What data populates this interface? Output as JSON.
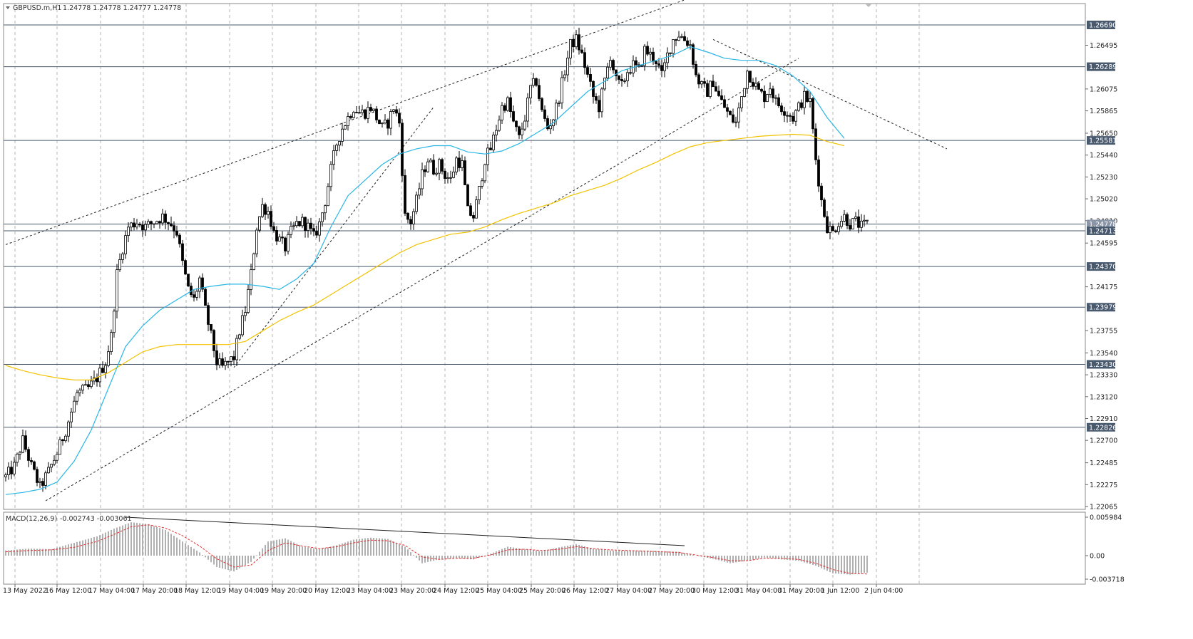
{
  "header": {
    "symbol": "GBPUSD.m,H1",
    "ohlc": "1.24778 1.24778 1.24777 1.24778"
  },
  "macd_header": {
    "label": "MACD(12,26,9)",
    "values": "-0.002743 -0.003061"
  },
  "colors": {
    "candle": "#000000",
    "ma_fast": "#29b6e6",
    "ma_slow": "#f2c200",
    "level": "#4a5a6e",
    "grid": "#b5b5b5",
    "macd_hist": "#b0b0b0",
    "macd_signal": "#e03030"
  },
  "chart_data": {
    "type": "candlestick",
    "symbol": "GBPUSD.m",
    "timeframe": "H1",
    "price_axis": {
      "range": [
        1.22065,
        1.2669
      ],
      "ticks": [
        "1.26495",
        "1.26075",
        "1.25865",
        "1.25650",
        "1.25440",
        "1.25230",
        "1.25020",
        "1.24810",
        "1.24595",
        "1.24175",
        "1.23755",
        "1.23540",
        "1.23330",
        "1.23120",
        "1.22910",
        "1.22700",
        "1.22485",
        "1.22275",
        "1.22065"
      ]
    },
    "time_axis": {
      "labels": [
        "13 May 2022",
        "16 May 12:00",
        "17 May 04:00",
        "17 May 20:00",
        "18 May 12:00",
        "19 May 04:00",
        "19 May 20:00",
        "20 May 12:00",
        "23 May 04:00",
        "23 May 20:00",
        "24 May 12:00",
        "25 May 04:00",
        "25 May 20:00",
        "26 May 12:00",
        "27 May 04:00",
        "27 May 20:00",
        "30 May 12:00",
        "31 May 04:00",
        "31 May 20:00",
        "1 Jun 12:00",
        "2 Jun 04:00"
      ]
    },
    "levels": [
      "1.26690",
      "1.26289",
      "1.25581",
      "1.24778",
      "1.24713",
      "1.24370",
      "1.23979",
      "1.23430",
      "1.22826"
    ],
    "current_price": "1.24778",
    "price_path": [
      [
        0,
        1.2235
      ],
      [
        3,
        1.2245
      ],
      [
        6,
        1.227
      ],
      [
        9,
        1.2245
      ],
      [
        12,
        1.2225
      ],
      [
        15,
        1.224
      ],
      [
        18,
        1.2258
      ],
      [
        21,
        1.228
      ],
      [
        25,
        1.2315
      ],
      [
        29,
        1.232
      ],
      [
        32,
        1.233
      ],
      [
        35,
        1.2345
      ],
      [
        37,
        1.237
      ],
      [
        39,
        1.243
      ],
      [
        41,
        1.2455
      ],
      [
        43,
        1.2475
      ],
      [
        46,
        1.248
      ],
      [
        49,
        1.2475
      ],
      [
        52,
        1.248
      ],
      [
        55,
        1.2485
      ],
      [
        58,
        1.2478
      ],
      [
        60,
        1.247
      ],
      [
        62,
        1.244
      ],
      [
        64,
        1.2415
      ],
      [
        66,
        1.2405
      ],
      [
        68,
        1.2425
      ],
      [
        70,
        1.2395
      ],
      [
        72,
        1.237
      ],
      [
        74,
        1.2345
      ],
      [
        76,
        1.234
      ],
      [
        78,
        1.2345
      ],
      [
        80,
        1.235
      ],
      [
        82,
        1.2375
      ],
      [
        84,
        1.2395
      ],
      [
        86,
        1.243
      ],
      [
        88,
        1.2475
      ],
      [
        90,
        1.2495
      ],
      [
        92,
        1.249
      ],
      [
        94,
        1.247
      ],
      [
        96,
        1.2462
      ],
      [
        98,
        1.2455
      ],
      [
        100,
        1.247
      ],
      [
        102,
        1.2478
      ],
      [
        104,
        1.248
      ],
      [
        106,
        1.2475
      ],
      [
        108,
        1.2465
      ],
      [
        110,
        1.2478
      ],
      [
        112,
        1.25
      ],
      [
        114,
        1.253
      ],
      [
        116,
        1.2555
      ],
      [
        118,
        1.257
      ],
      [
        120,
        1.258
      ],
      [
        122,
        1.259
      ],
      [
        124,
        1.2585
      ],
      [
        126,
        1.2585
      ],
      [
        128,
        1.259
      ],
      [
        130,
        1.258
      ],
      [
        132,
        1.257
      ],
      [
        134,
        1.2575
      ],
      [
        136,
        1.259
      ],
      [
        138,
        1.2575
      ],
      [
        140,
        1.2485
      ],
      [
        142,
        1.248
      ],
      [
        144,
        1.25
      ],
      [
        146,
        1.2525
      ],
      [
        148,
        1.254
      ],
      [
        150,
        1.253
      ],
      [
        152,
        1.2535
      ],
      [
        154,
        1.2525
      ],
      [
        156,
        1.252
      ],
      [
        158,
        1.254
      ],
      [
        160,
        1.2535
      ],
      [
        162,
        1.249
      ],
      [
        164,
        1.2485
      ],
      [
        166,
        1.251
      ],
      [
        168,
        1.254
      ],
      [
        170,
        1.255
      ],
      [
        172,
        1.257
      ],
      [
        174,
        1.259
      ],
      [
        176,
        1.2595
      ],
      [
        178,
        1.2575
      ],
      [
        180,
        1.256
      ],
      [
        182,
        1.258
      ],
      [
        184,
        1.2608
      ],
      [
        186,
        1.2615
      ],
      [
        188,
        1.2585
      ],
      [
        190,
        1.257
      ],
      [
        192,
        1.258
      ],
      [
        194,
        1.26
      ],
      [
        196,
        1.2625
      ],
      [
        198,
        1.265
      ],
      [
        200,
        1.2655
      ],
      [
        202,
        1.264
      ],
      [
        204,
        1.262
      ],
      [
        206,
        1.26
      ],
      [
        208,
        1.259
      ],
      [
        210,
        1.2615
      ],
      [
        212,
        1.264
      ],
      [
        214,
        1.2615
      ],
      [
        216,
        1.261
      ],
      [
        218,
        1.2625
      ],
      [
        220,
        1.263
      ],
      [
        222,
        1.2625
      ],
      [
        224,
        1.2645
      ],
      [
        226,
        1.264
      ],
      [
        228,
        1.2635
      ],
      [
        230,
        1.262
      ],
      [
        232,
        1.264
      ],
      [
        234,
        1.2655
      ],
      [
        236,
        1.266
      ],
      [
        238,
        1.2655
      ],
      [
        240,
        1.265
      ],
      [
        242,
        1.262
      ],
      [
        244,
        1.261
      ],
      [
        246,
        1.2605
      ],
      [
        248,
        1.2615
      ],
      [
        250,
        1.26
      ],
      [
        252,
        1.259
      ],
      [
        254,
        1.258
      ],
      [
        256,
        1.2575
      ],
      [
        258,
        1.26
      ],
      [
        260,
        1.2625
      ],
      [
        262,
        1.2615
      ],
      [
        264,
        1.2605
      ],
      [
        266,
        1.26
      ],
      [
        268,
        1.261
      ],
      [
        270,
        1.2595
      ],
      [
        272,
        1.259
      ],
      [
        274,
        1.2585
      ],
      [
        276,
        1.258
      ],
      [
        278,
        1.259
      ],
      [
        280,
        1.26
      ],
      [
        282,
        1.2595
      ],
      [
        284,
        1.254
      ],
      [
        286,
        1.25
      ],
      [
        288,
        1.2475
      ],
      [
        290,
        1.247
      ],
      [
        292,
        1.248
      ],
      [
        294,
        1.2485
      ],
      [
        296,
        1.2478
      ],
      [
        298,
        1.248
      ],
      [
        300,
        1.2475
      ],
      [
        302,
        1.2478
      ]
    ],
    "ma_fast": {
      "name": "",
      "points": [
        [
          0,
          1.2218
        ],
        [
          6,
          1.222
        ],
        [
          12,
          1.2223
        ],
        [
          18,
          1.223
        ],
        [
          24,
          1.225
        ],
        [
          30,
          1.228
        ],
        [
          36,
          1.232
        ],
        [
          42,
          1.236
        ],
        [
          48,
          1.238
        ],
        [
          54,
          1.2395
        ],
        [
          60,
          1.2405
        ],
        [
          66,
          1.2415
        ],
        [
          72,
          1.2418
        ],
        [
          78,
          1.242
        ],
        [
          84,
          1.242
        ],
        [
          90,
          1.2418
        ],
        [
          96,
          1.2415
        ],
        [
          102,
          1.2425
        ],
        [
          108,
          1.244
        ],
        [
          114,
          1.2475
        ],
        [
          120,
          1.2505
        ],
        [
          126,
          1.252
        ],
        [
          132,
          1.2535
        ],
        [
          138,
          1.2545
        ],
        [
          144,
          1.255
        ],
        [
          150,
          1.2553
        ],
        [
          156,
          1.2553
        ],
        [
          162,
          1.2547
        ],
        [
          168,
          1.2545
        ],
        [
          174,
          1.2548
        ],
        [
          180,
          1.2555
        ],
        [
          186,
          1.2565
        ],
        [
          192,
          1.2575
        ],
        [
          198,
          1.259
        ],
        [
          204,
          1.2605
        ],
        [
          210,
          1.2615
        ],
        [
          216,
          1.2625
        ],
        [
          222,
          1.263
        ],
        [
          228,
          1.2635
        ],
        [
          234,
          1.264
        ],
        [
          240,
          1.2648
        ],
        [
          246,
          1.2643
        ],
        [
          252,
          1.2637
        ],
        [
          258,
          1.2635
        ],
        [
          264,
          1.2635
        ],
        [
          270,
          1.263
        ],
        [
          276,
          1.262
        ],
        [
          282,
          1.2605
        ],
        [
          288,
          1.258
        ],
        [
          294,
          1.256
        ]
      ]
    },
    "ma_slow": {
      "name": "",
      "points": [
        [
          0,
          1.2342
        ],
        [
          6,
          1.2337
        ],
        [
          12,
          1.2333
        ],
        [
          18,
          1.233
        ],
        [
          24,
          1.2328
        ],
        [
          30,
          1.2328
        ],
        [
          36,
          1.2335
        ],
        [
          42,
          1.2345
        ],
        [
          48,
          1.2355
        ],
        [
          54,
          1.236
        ],
        [
          60,
          1.2362
        ],
        [
          66,
          1.2362
        ],
        [
          72,
          1.2362
        ],
        [
          78,
          1.2362
        ],
        [
          84,
          1.2365
        ],
        [
          90,
          1.2375
        ],
        [
          96,
          1.2385
        ],
        [
          102,
          1.2393
        ],
        [
          108,
          1.24
        ],
        [
          114,
          1.241
        ],
        [
          120,
          1.242
        ],
        [
          126,
          1.243
        ],
        [
          132,
          1.244
        ],
        [
          138,
          1.245
        ],
        [
          144,
          1.2458
        ],
        [
          150,
          1.2463
        ],
        [
          156,
          1.2468
        ],
        [
          162,
          1.247
        ],
        [
          168,
          1.2475
        ],
        [
          174,
          1.2482
        ],
        [
          180,
          1.2488
        ],
        [
          186,
          1.2493
        ],
        [
          192,
          1.2498
        ],
        [
          198,
          1.2505
        ],
        [
          204,
          1.251
        ],
        [
          210,
          1.2515
        ],
        [
          216,
          1.2522
        ],
        [
          222,
          1.253
        ],
        [
          228,
          1.2537
        ],
        [
          234,
          1.2545
        ],
        [
          240,
          1.2552
        ],
        [
          246,
          1.2556
        ],
        [
          252,
          1.2558
        ],
        [
          258,
          1.256
        ],
        [
          264,
          1.2562
        ],
        [
          270,
          1.2563
        ],
        [
          276,
          1.2564
        ],
        [
          282,
          1.2563
        ],
        [
          288,
          1.2557
        ],
        [
          294,
          1.2553
        ]
      ]
    },
    "macd": {
      "range": [
        -0.003718,
        0.005984
      ],
      "ticks": [
        "0.005984",
        "0.00",
        "-0.003718"
      ],
      "histogram": [
        [
          0,
          0.0008
        ],
        [
          8,
          0.0011
        ],
        [
          16,
          0.001
        ],
        [
          24,
          0.002
        ],
        [
          32,
          0.003
        ],
        [
          38,
          0.0042
        ],
        [
          44,
          0.0052
        ],
        [
          50,
          0.0049
        ],
        [
          56,
          0.004
        ],
        [
          62,
          0.0022
        ],
        [
          68,
          0.0005
        ],
        [
          74,
          -0.0018
        ],
        [
          80,
          -0.0025
        ],
        [
          86,
          -0.001
        ],
        [
          92,
          0.0022
        ],
        [
          98,
          0.0027
        ],
        [
          104,
          0.0014
        ],
        [
          110,
          0.001
        ],
        [
          116,
          0.0016
        ],
        [
          122,
          0.0025
        ],
        [
          128,
          0.0028
        ],
        [
          134,
          0.0026
        ],
        [
          140,
          0.0014
        ],
        [
          146,
          -0.0012
        ],
        [
          152,
          -0.0006
        ],
        [
          158,
          -0.0004
        ],
        [
          164,
          -0.0006
        ],
        [
          170,
          0.0003
        ],
        [
          176,
          0.0014
        ],
        [
          182,
          0.001
        ],
        [
          188,
          0.0007
        ],
        [
          194,
          0.0013
        ],
        [
          200,
          0.0018
        ],
        [
          206,
          0.0011
        ],
        [
          212,
          0.0008
        ],
        [
          218,
          0.0008
        ],
        [
          224,
          0.0008
        ],
        [
          230,
          0.0007
        ],
        [
          236,
          0.0006
        ],
        [
          242,
          0.0
        ],
        [
          248,
          -0.0005
        ],
        [
          254,
          -0.0012
        ],
        [
          260,
          -0.0008
        ],
        [
          266,
          -0.0003
        ],
        [
          272,
          -0.0006
        ],
        [
          278,
          -0.0008
        ],
        [
          284,
          -0.0016
        ],
        [
          290,
          -0.0028
        ],
        [
          296,
          -0.003
        ],
        [
          302,
          -0.0027
        ]
      ],
      "signal": [
        [
          0,
          0.0006
        ],
        [
          8,
          0.0008
        ],
        [
          16,
          0.0009
        ],
        [
          24,
          0.0013
        ],
        [
          32,
          0.0022
        ],
        [
          38,
          0.0033
        ],
        [
          44,
          0.0045
        ],
        [
          50,
          0.0048
        ],
        [
          56,
          0.0043
        ],
        [
          62,
          0.0031
        ],
        [
          68,
          0.0015
        ],
        [
          74,
          -0.0005
        ],
        [
          80,
          -0.0018
        ],
        [
          86,
          -0.0015
        ],
        [
          92,
          0.0008
        ],
        [
          98,
          0.002
        ],
        [
          104,
          0.0015
        ],
        [
          110,
          0.0011
        ],
        [
          116,
          0.0014
        ],
        [
          122,
          0.002
        ],
        [
          128,
          0.0024
        ],
        [
          134,
          0.0023
        ],
        [
          140,
          0.0016
        ],
        [
          146,
          -0.0002
        ],
        [
          152,
          -0.0006
        ],
        [
          158,
          -0.0004
        ],
        [
          164,
          -0.0004
        ],
        [
          170,
          0.0001
        ],
        [
          176,
          0.0009
        ],
        [
          182,
          0.001
        ],
        [
          188,
          0.0008
        ],
        [
          194,
          0.001
        ],
        [
          200,
          0.0014
        ],
        [
          206,
          0.0011
        ],
        [
          212,
          0.0009
        ],
        [
          218,
          0.0008
        ],
        [
          224,
          0.0007
        ],
        [
          230,
          0.0006
        ],
        [
          236,
          0.0005
        ],
        [
          242,
          0.0001
        ],
        [
          248,
          -0.0003
        ],
        [
          254,
          -0.0008
        ],
        [
          260,
          -0.0008
        ],
        [
          266,
          -0.0004
        ],
        [
          272,
          -0.0004
        ],
        [
          278,
          -0.0006
        ],
        [
          284,
          -0.0012
        ],
        [
          290,
          -0.0022
        ],
        [
          296,
          -0.0028
        ],
        [
          302,
          -0.0029
        ]
      ]
    },
    "grid": true
  }
}
